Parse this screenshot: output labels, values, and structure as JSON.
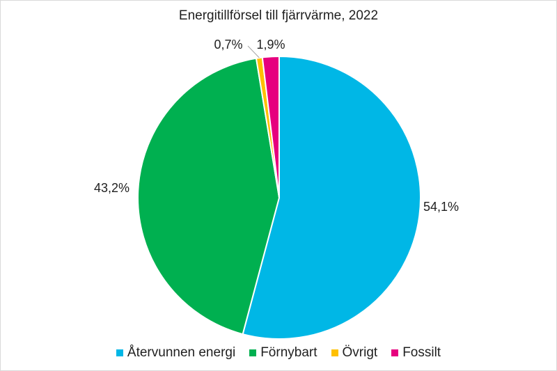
{
  "chart_data": {
    "type": "pie",
    "title": "Energitillförsel till fjärrvärme, 2022",
    "categories": [
      "Återvunnen energi",
      "Förnybart",
      "Övrigt",
      "Fossilt"
    ],
    "values": [
      54.1,
      43.2,
      0.7,
      1.9
    ],
    "data_labels": [
      "54,1%",
      "43,2%",
      "0,7%",
      "1,9%"
    ],
    "colors": [
      "#00b7e6",
      "#00b050",
      "#ffc000",
      "#e6007e"
    ],
    "start_angle_deg": 0,
    "direction": "clockwise",
    "legend": "bottom"
  }
}
